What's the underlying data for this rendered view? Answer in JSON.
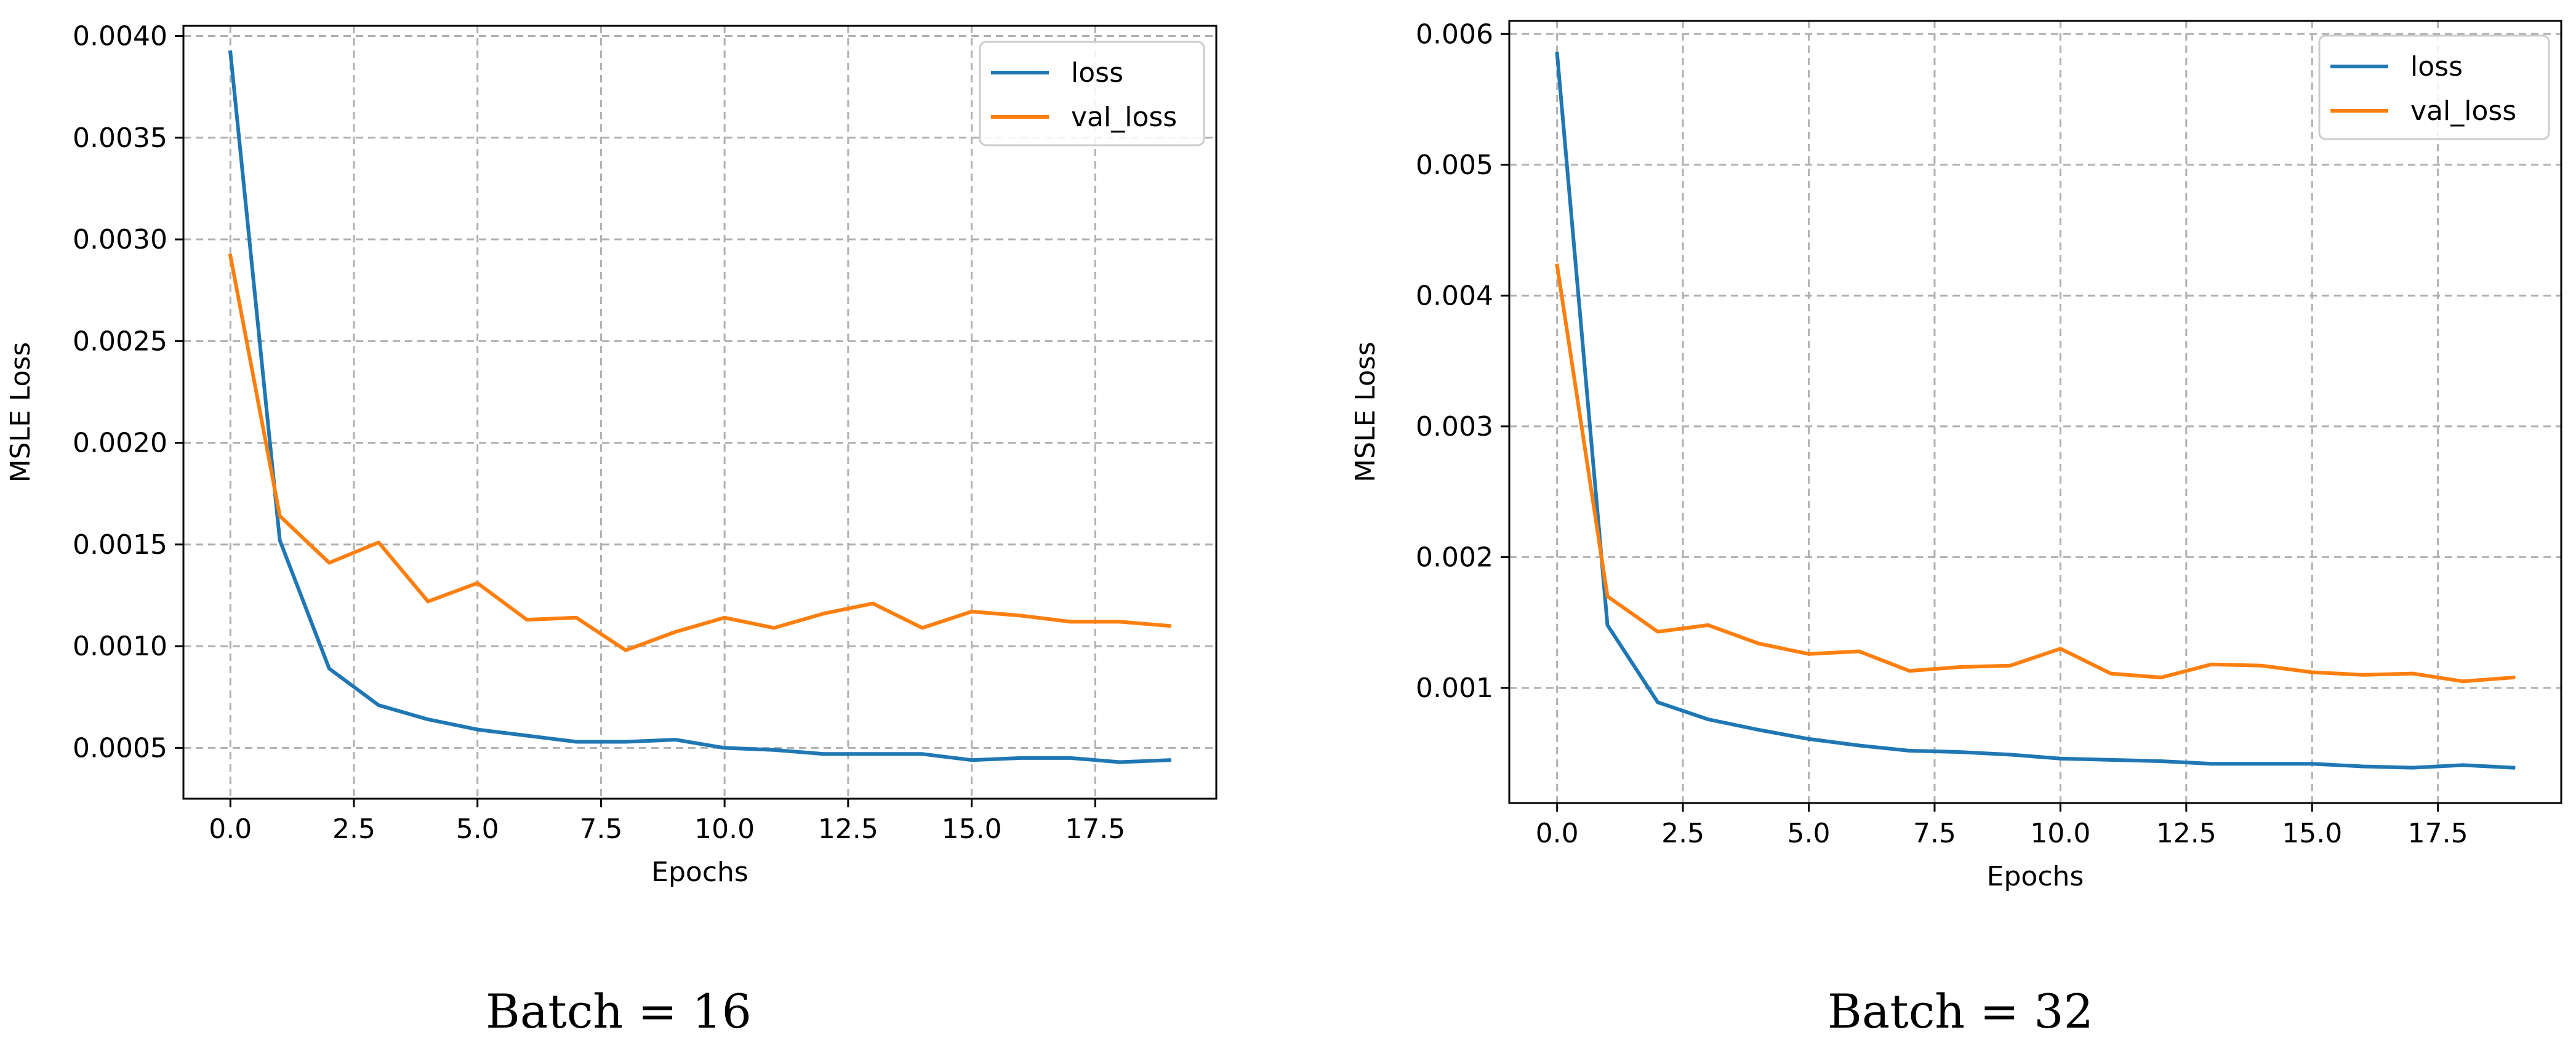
{
  "chart_data": [
    {
      "type": "line",
      "caption": "Batch = 16",
      "xlabel": "Epochs",
      "ylabel": "MSLE Loss",
      "xlim": [
        -0.95,
        19.95
      ],
      "ylim": [
        0.00025,
        0.00405
      ],
      "xticks": [
        0,
        2.5,
        5,
        7.5,
        10,
        12.5,
        15,
        17.5
      ],
      "xtick_labels": [
        "0.0",
        "2.5",
        "5.0",
        "7.5",
        "10.0",
        "12.5",
        "15.0",
        "17.5"
      ],
      "yticks": [
        0.0005,
        0.001,
        0.0015,
        0.002,
        0.0025,
        0.003,
        0.0035,
        0.004
      ],
      "ytick_labels": [
        "0.0005",
        "0.0010",
        "0.0015",
        "0.0020",
        "0.0025",
        "0.0030",
        "0.0035",
        "0.0040"
      ],
      "grid": true,
      "legend_position": "top-right",
      "x": [
        0,
        1,
        2,
        3,
        4,
        5,
        6,
        7,
        8,
        9,
        10,
        11,
        12,
        13,
        14,
        15,
        16,
        17,
        18,
        19
      ],
      "series": [
        {
          "name": "loss",
          "color": "#1f77b4",
          "values": [
            0.00392,
            0.00152,
            0.00089,
            0.00071,
            0.00064,
            0.00059,
            0.00056,
            0.00053,
            0.00053,
            0.00054,
            0.0005,
            0.00049,
            0.00047,
            0.00047,
            0.00047,
            0.00044,
            0.00045,
            0.00045,
            0.00043,
            0.00044
          ]
        },
        {
          "name": "val_loss",
          "color": "#ff7f0e",
          "values": [
            0.00292,
            0.00164,
            0.00141,
            0.00151,
            0.00122,
            0.00131,
            0.00113,
            0.00114,
            0.00098,
            0.00107,
            0.00114,
            0.00109,
            0.00116,
            0.00121,
            0.00109,
            0.00117,
            0.00115,
            0.00112,
            0.00112,
            0.0011
          ]
        }
      ]
    },
    {
      "type": "line",
      "caption": "Batch = 32",
      "xlabel": "Epochs",
      "ylabel": "MSLE Loss",
      "xlim": [
        -0.95,
        19.95
      ],
      "ylim": [
        0.00012,
        0.0061
      ],
      "xticks": [
        0,
        2.5,
        5,
        7.5,
        10,
        12.5,
        15,
        17.5
      ],
      "xtick_labels": [
        "0.0",
        "2.5",
        "5.0",
        "7.5",
        "10.0",
        "12.5",
        "15.0",
        "17.5"
      ],
      "yticks": [
        0.001,
        0.002,
        0.003,
        0.004,
        0.005,
        0.006
      ],
      "ytick_labels": [
        "0.001",
        "0.002",
        "0.003",
        "0.004",
        "0.005",
        "0.006"
      ],
      "grid": true,
      "legend_position": "top-right",
      "x": [
        0,
        1,
        2,
        3,
        4,
        5,
        6,
        7,
        8,
        9,
        10,
        11,
        12,
        13,
        14,
        15,
        16,
        17,
        18,
        19
      ],
      "series": [
        {
          "name": "loss",
          "color": "#1f77b4",
          "values": [
            0.00585,
            0.00148,
            0.00089,
            0.00076,
            0.00068,
            0.00061,
            0.00056,
            0.00052,
            0.00051,
            0.00049,
            0.00046,
            0.00045,
            0.00044,
            0.00042,
            0.00042,
            0.00042,
            0.0004,
            0.00039,
            0.00041,
            0.00039
          ]
        },
        {
          "name": "val_loss",
          "color": "#ff7f0e",
          "values": [
            0.00423,
            0.0017,
            0.00143,
            0.00148,
            0.00134,
            0.00126,
            0.00128,
            0.00113,
            0.00116,
            0.00117,
            0.0013,
            0.00111,
            0.00108,
            0.00118,
            0.00117,
            0.00112,
            0.0011,
            0.00111,
            0.00105,
            0.00108
          ]
        }
      ]
    }
  ]
}
